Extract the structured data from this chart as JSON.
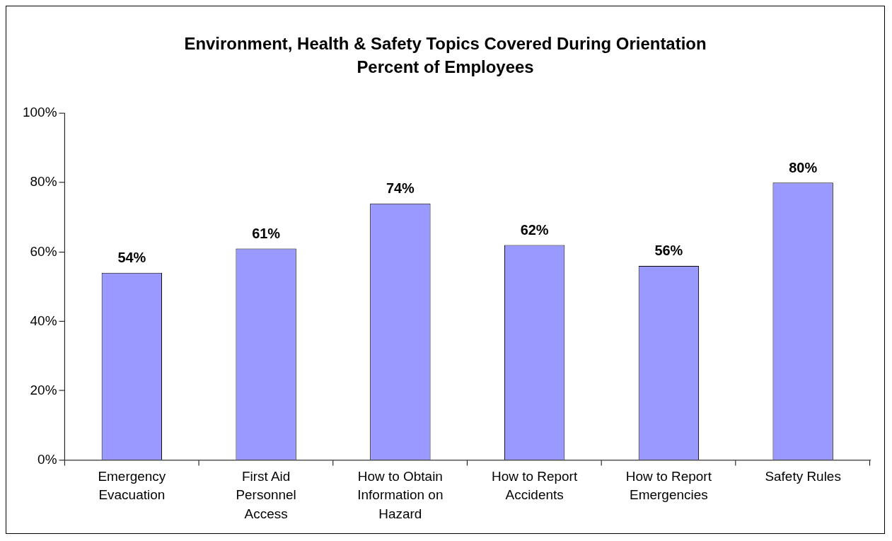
{
  "chart_data": {
    "type": "bar",
    "title": "Environment, Health & Safety Topics Covered During Orientation",
    "subtitle": "Percent of Employees",
    "categories": [
      "Emergency Evacuation",
      "First Aid Personnel Access",
      "How to Obtain Information on Hazard",
      "How to Report Accidents",
      "How to Report Emergencies",
      "Safety Rules"
    ],
    "values": [
      54,
      61,
      74,
      62,
      56,
      80
    ],
    "value_labels": [
      "54%",
      "61%",
      "74%",
      "62%",
      "56%",
      "80%"
    ],
    "color": "#9999ff",
    "ylim": [
      0,
      100
    ],
    "yticks": [
      {
        "value": 0,
        "label": "0%"
      },
      {
        "value": 20,
        "label": "20%"
      },
      {
        "value": 40,
        "label": "40%"
      },
      {
        "value": 60,
        "label": "60%"
      },
      {
        "value": 80,
        "label": "80%"
      },
      {
        "value": 100,
        "label": "100%"
      }
    ],
    "grid": false,
    "legend": false
  }
}
